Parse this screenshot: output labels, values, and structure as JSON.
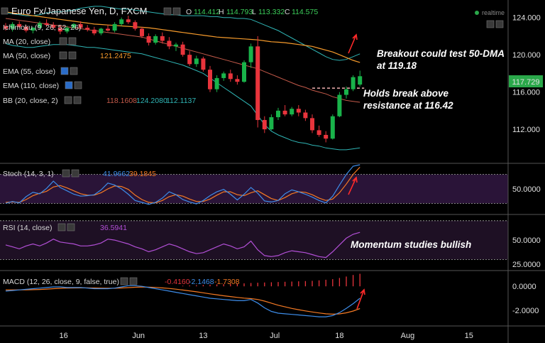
{
  "title": "Euro Fx/Japanese Yen, D, FXCM",
  "ohlc": {
    "o_label": "O",
    "o": "114.412",
    "h_label": "H",
    "h": "114.793",
    "l_label": "L",
    "l": "113.332",
    "c_label": "C",
    "c": "114.575"
  },
  "realtime_label": "realtime",
  "indicators": {
    "ichimoku": "Ichimoku (9, 26, 52, 26)",
    "ma20": "MA (20, close)",
    "ma50": "MA (50, close)",
    "ma50_value": "121.2475",
    "ema55": "EMA (55, close)",
    "ema110": "EMA (110, close)",
    "bb": "BB (20, close, 2)",
    "bb_values": [
      "118.1608",
      "124.2080",
      "112.1137"
    ]
  },
  "stoch": {
    "label": "Stoch (14, 3, 1)",
    "values": [
      "41.9662",
      "39.1845"
    ]
  },
  "rsi": {
    "label": "RSI (14, close)",
    "value": "36.5941"
  },
  "macd": {
    "label": "MACD (12, 26, close, 9, false, true)",
    "values": [
      "-0.4160",
      "-2.1468",
      "-1.7308"
    ]
  },
  "annotations": {
    "breakout": [
      "Breakout could test 50-DMA",
      "at 119.18"
    ],
    "holds": [
      "Holds break above",
      "resistance at 116.42"
    ],
    "momentum": "Momentum studies bullish"
  },
  "price_badge": "117.729",
  "colors": {
    "up": "#19b34a",
    "down": "#e8343c",
    "ma50": "#f59a2b",
    "bb": "#2fb5b5",
    "ema": "#c45a4a",
    "stoch_k": "#3d8ce8",
    "stoch_d": "#f57a24",
    "rsi": "#b24fd6",
    "macd_line": "#3d8ce8",
    "macd_signal": "#f57a24",
    "histogram": "#e8343c",
    "arrow": "#ff2a2a",
    "badge": "#2aa84a"
  },
  "chart_data": [
    {
      "type": "candlestick",
      "title": "Euro Fx/Japanese Yen, D, FXCM",
      "ylim": [
        108.5,
        125.5
      ],
      "y_ticks": [
        "124.000",
        "120.000",
        "116.000",
        "112.000"
      ],
      "y_tick_values": [
        124,
        120,
        116,
        112
      ],
      "x_ticks": [
        "16",
        "Jun",
        "13",
        "Jul",
        "18",
        "Aug",
        "15"
      ],
      "x_tick_values": [
        8.5,
        19.5,
        29,
        39.5,
        49,
        59,
        68
      ],
      "resistance": 116.42,
      "candles": [
        [
          123.1,
          123.4,
          122.6,
          122.8
        ],
        [
          122.8,
          123.5,
          122.5,
          123.3
        ],
        [
          123.3,
          123.6,
          122.9,
          123.0
        ],
        [
          123.0,
          123.2,
          122.4,
          122.6
        ],
        [
          122.6,
          123.0,
          122.3,
          122.9
        ],
        [
          122.9,
          123.6,
          122.8,
          123.4
        ],
        [
          123.4,
          123.8,
          123.0,
          123.2
        ],
        [
          123.2,
          123.5,
          122.7,
          122.9
        ],
        [
          122.9,
          123.2,
          122.2,
          122.5
        ],
        [
          122.5,
          123.1,
          122.3,
          122.9
        ],
        [
          122.9,
          123.4,
          122.7,
          123.3
        ],
        [
          123.3,
          123.6,
          122.8,
          122.9
        ],
        [
          122.9,
          123.2,
          122.5,
          122.7
        ],
        [
          122.7,
          123.0,
          122.1,
          122.3
        ],
        [
          122.3,
          122.9,
          122.1,
          122.8
        ],
        [
          122.8,
          123.2,
          122.5,
          122.6
        ],
        [
          122.6,
          123.5,
          122.4,
          123.3
        ],
        [
          123.3,
          124.0,
          123.1,
          123.8
        ],
        [
          123.8,
          124.2,
          123.3,
          123.5
        ],
        [
          123.5,
          123.7,
          122.6,
          122.8
        ],
        [
          122.8,
          123.0,
          121.8,
          122.0
        ],
        [
          122.0,
          122.3,
          121.0,
          121.3
        ],
        [
          121.3,
          122.2,
          121.1,
          122.0
        ],
        [
          122.0,
          122.4,
          121.2,
          121.5
        ],
        [
          121.5,
          121.9,
          120.6,
          120.9
        ],
        [
          120.9,
          121.3,
          120.4,
          121.1
        ],
        [
          121.1,
          121.4,
          119.8,
          120.0
        ],
        [
          120.0,
          120.4,
          118.8,
          119.0
        ],
        [
          119.0,
          119.9,
          118.7,
          119.6
        ],
        [
          119.6,
          119.8,
          118.2,
          118.4
        ],
        [
          118.4,
          118.8,
          116.0,
          116.3
        ],
        [
          116.3,
          117.8,
          116.0,
          117.5
        ],
        [
          117.5,
          118.2,
          117.2,
          118.0
        ],
        [
          118.0,
          118.4,
          117.1,
          117.4
        ],
        [
          117.4,
          117.8,
          116.8,
          117.1
        ],
        [
          117.1,
          119.4,
          117.0,
          119.2
        ],
        [
          119.2,
          121.2,
          118.6,
          120.9
        ],
        [
          120.9,
          122.0,
          112.2,
          113.0
        ],
        [
          113.0,
          113.4,
          111.6,
          112.0
        ],
        [
          112.0,
          113.6,
          111.9,
          113.3
        ],
        [
          113.3,
          114.3,
          113.0,
          114.0
        ],
        [
          114.0,
          114.6,
          113.4,
          113.6
        ],
        [
          113.6,
          114.4,
          113.4,
          114.2
        ],
        [
          114.2,
          114.6,
          113.4,
          113.8
        ],
        [
          113.8,
          114.1,
          112.9,
          113.2
        ],
        [
          113.2,
          113.6,
          111.6,
          111.9
        ],
        [
          111.9,
          112.4,
          111.2,
          111.4
        ],
        [
          111.4,
          111.8,
          110.6,
          111.0
        ],
        [
          111.0,
          113.6,
          110.9,
          113.4
        ],
        [
          113.4,
          116.0,
          113.3,
          115.7
        ],
        [
          115.7,
          116.6,
          115.3,
          116.3
        ],
        [
          116.3,
          117.8,
          116.1,
          117.6
        ],
        [
          116.8,
          118.3,
          116.6,
          117.7
        ]
      ],
      "ma50": [
        124.6,
        124.5,
        124.4,
        124.3,
        124.2,
        124.1,
        124.0,
        123.9,
        123.8,
        123.7,
        123.6,
        123.5,
        123.4,
        123.3,
        123.25,
        123.2,
        123.15,
        123.1,
        123.05,
        123.0,
        122.95,
        122.9,
        122.8,
        122.7,
        122.6,
        122.5,
        122.4,
        122.3,
        122.2,
        122.1,
        122.0,
        121.9,
        121.85,
        121.8,
        121.75,
        121.7,
        121.65,
        121.6,
        121.5,
        121.4,
        121.35,
        121.3,
        121.2,
        121.1,
        121.0,
        120.9,
        120.7,
        120.5,
        120.3,
        120.0,
        119.7,
        119.4,
        119.18
      ],
      "ema": [
        123.9,
        123.8,
        123.7,
        123.6,
        123.5,
        123.4,
        123.3,
        123.2,
        123.1,
        123.0,
        122.9,
        122.8,
        122.7,
        122.6,
        122.5,
        122.4,
        122.3,
        122.2,
        122.1,
        122.0,
        121.9,
        121.7,
        121.5,
        121.3,
        121.1,
        120.9,
        120.7,
        120.5,
        120.3,
        120.1,
        119.9,
        119.7,
        119.5,
        119.3,
        119.1,
        118.9,
        118.7,
        118.5,
        118.2,
        117.9,
        117.6,
        117.3,
        117.0,
        116.7,
        116.5,
        116.2,
        116.0,
        115.8,
        115.5,
        115.3,
        115.1,
        115.0,
        114.9
      ],
      "bb_upper": [
        124.5,
        124.4,
        124.3,
        124.2,
        124.2,
        124.3,
        124.5,
        124.6,
        124.6,
        124.7,
        124.8,
        125.0,
        125.1,
        125.2,
        125.2,
        125.1,
        125.0,
        124.9,
        124.9,
        124.8,
        124.7,
        124.6,
        124.5,
        124.4,
        124.3,
        124.3,
        124.2,
        124.2,
        124.2,
        124.2,
        124.1,
        124.1,
        124.0,
        124.0,
        123.9,
        123.9,
        123.8,
        123.5,
        123.2,
        122.9,
        122.6,
        122.2,
        121.8,
        121.4,
        121.0,
        120.6,
        120.2,
        119.8,
        119.5,
        119.4,
        119.5,
        119.8,
        120.1
      ],
      "bb_lower": [
        121.2,
        121.0,
        120.9,
        120.8,
        120.8,
        120.9,
        121.0,
        121.1,
        121.1,
        121.1,
        121.0,
        120.9,
        120.8,
        120.8,
        120.7,
        120.6,
        120.5,
        120.4,
        120.3,
        120.2,
        120.1,
        119.9,
        119.7,
        119.5,
        119.3,
        119.1,
        118.9,
        118.6,
        118.3,
        118.0,
        117.5,
        117.0,
        116.5,
        116.0,
        115.5,
        115.0,
        114.5,
        113.5,
        112.5,
        111.8,
        111.4,
        111.1,
        110.8,
        110.6,
        110.5,
        110.3,
        110.2,
        110.0,
        109.9,
        109.8,
        109.8,
        109.9,
        110.0
      ]
    },
    {
      "type": "line",
      "label": "Stoch (14, 3, 1)",
      "ylim": [
        0,
        100
      ],
      "y_ticks": [
        "50.0000"
      ],
      "y_tick_values": [
        50
      ],
      "levels": [
        80,
        20
      ],
      "series": [
        {
          "values": [
            20,
            24,
            21,
            34,
            43,
            40,
            51,
            66,
            53,
            46,
            39,
            35,
            36,
            38,
            48,
            62,
            58,
            50,
            39,
            26,
            22,
            18,
            22,
            31,
            44,
            38,
            28,
            23,
            19,
            26,
            36,
            44,
            49,
            39,
            27,
            39,
            53,
            41,
            25,
            23,
            26,
            40,
            48,
            44,
            39,
            33,
            26,
            21,
            35,
            58,
            80,
            97,
            100
          ]
        },
        {
          "values": [
            22,
            23,
            22,
            28,
            36,
            41,
            45,
            54,
            57,
            52,
            46,
            40,
            37,
            37,
            42,
            50,
            56,
            55,
            49,
            37,
            28,
            22,
            21,
            26,
            34,
            38,
            35,
            29,
            24,
            24,
            29,
            37,
            44,
            44,
            38,
            36,
            42,
            46,
            38,
            30,
            26,
            32,
            40,
            44,
            43,
            38,
            31,
            26,
            29,
            42,
            60,
            80,
            95
          ]
        }
      ]
    },
    {
      "type": "line",
      "label": "RSI (14, close)",
      "ylim": [
        20,
        75
      ],
      "y_ticks": [
        "50.0000",
        "25.0000"
      ],
      "y_tick_values": [
        50,
        25
      ],
      "levels": [
        70,
        30
      ],
      "series": [
        {
          "values": [
            45,
            43,
            41,
            44,
            46,
            44,
            47,
            51,
            48,
            47,
            46,
            44,
            44,
            45,
            47,
            51,
            50,
            48,
            46,
            43,
            41,
            38,
            40,
            43,
            46,
            44,
            41,
            38,
            36,
            37,
            40,
            43,
            46,
            44,
            41,
            43,
            49,
            40,
            34,
            33,
            34,
            37,
            39,
            38,
            37,
            35,
            33,
            32,
            38,
            45,
            52,
            56,
            58
          ]
        }
      ]
    },
    {
      "type": "line",
      "label": "MACD (12, 26, close, 9, false, true)",
      "ylim": [
        -3.2,
        1.2
      ],
      "y_ticks": [
        "0.0000",
        "-2.0000"
      ],
      "y_tick_values": [
        0,
        -2
      ],
      "series": [
        {
          "values": [
            -0.4,
            -0.35,
            -0.3,
            -0.25,
            -0.2,
            -0.15,
            -0.1,
            -0.05,
            -0.05,
            -0.1,
            -0.1,
            -0.1,
            -0.15,
            -0.2,
            -0.2,
            -0.2,
            -0.15,
            -0.05,
            0.05,
            0.05,
            0.0,
            -0.1,
            -0.2,
            -0.3,
            -0.4,
            -0.5,
            -0.6,
            -0.7,
            -0.8,
            -0.9,
            -1.0,
            -1.05,
            -1.1,
            -1.15,
            -1.2,
            -1.2,
            -1.1,
            -1.4,
            -1.8,
            -2.1,
            -2.25,
            -2.3,
            -2.35,
            -2.4,
            -2.45,
            -2.5,
            -2.55,
            -2.55,
            -2.45,
            -2.2,
            -1.85,
            -1.45,
            -1.0
          ]
        },
        {
          "values": [
            -0.3,
            -0.3,
            -0.3,
            -0.29,
            -0.28,
            -0.26,
            -0.23,
            -0.2,
            -0.17,
            -0.15,
            -0.14,
            -0.13,
            -0.13,
            -0.14,
            -0.15,
            -0.16,
            -0.16,
            -0.14,
            -0.11,
            -0.08,
            -0.06,
            -0.07,
            -0.09,
            -0.13,
            -0.18,
            -0.24,
            -0.31,
            -0.38,
            -0.46,
            -0.54,
            -0.63,
            -0.71,
            -0.79,
            -0.86,
            -0.93,
            -0.99,
            -1.03,
            -1.1,
            -1.24,
            -1.41,
            -1.58,
            -1.72,
            -1.85,
            -1.96,
            -2.06,
            -2.15,
            -2.23,
            -2.3,
            -2.33,
            -2.31,
            -2.22,
            -2.07,
            -1.86
          ]
        }
      ],
      "histogram": [
        0,
        0,
        0,
        0,
        0,
        0,
        0,
        0,
        0,
        0,
        0,
        0,
        0,
        0,
        0,
        0,
        0,
        0,
        0,
        0,
        0,
        0,
        0,
        0,
        0,
        0,
        0.05,
        0.08,
        0.1,
        0.12,
        0.14,
        0.16,
        0.18,
        0.2,
        0.22,
        0.25,
        0.28,
        0.3,
        0.32,
        0.34,
        0.36,
        0.38,
        0.4,
        0.42,
        0.44,
        0.46,
        0.5,
        0.55,
        0.6,
        0.7,
        0.82,
        0.95,
        1.05
      ]
    }
  ]
}
